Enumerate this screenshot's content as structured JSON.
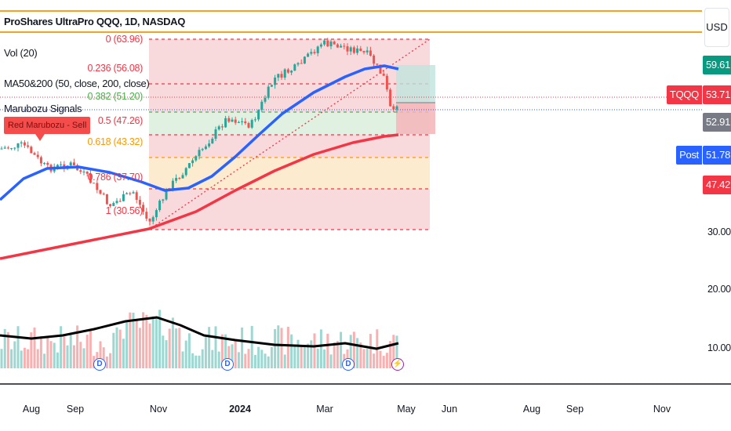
{
  "header": {
    "title": "ProShares UltraPro QQQ, 1D, NASDAQ",
    "currency": "USD"
  },
  "legend": {
    "volume": "Vol (20)",
    "ma": "MA50&200 (50, close, 200, close)",
    "signals": "Marubozu Signals"
  },
  "signal_label": "Red Marubozu - Sell",
  "fib": [
    {
      "label": "0 (63.96)",
      "color": "#f23645"
    },
    {
      "label": "0.236 (56.08)",
      "color": "#f23645"
    },
    {
      "label": "0.382 (51.20)",
      "color": "#4caf50"
    },
    {
      "label": "0.5 (47.26)",
      "color": "#f23645"
    },
    {
      "label": "0.618 (43.32)",
      "color": "#ff9800"
    },
    {
      "label": "0.786 (37.70)",
      "color": "#f23645"
    },
    {
      "label": "1 (30.56)",
      "color": "#f23645"
    }
  ],
  "price_axis": [
    "30.00",
    "20.00",
    "10.00"
  ],
  "price_tags": {
    "high": "59.61",
    "symbol": "TQQQ",
    "last": "53.71",
    "prev": "52.91",
    "post_label": "Post",
    "post": "51.78",
    "low": "47.42"
  },
  "time_axis": [
    "Aug",
    "Sep",
    "Nov",
    "2024",
    "Mar",
    "May",
    "Jun",
    "Aug",
    "Sep",
    "Nov"
  ],
  "events": {
    "dividend": "D",
    "earnings": "⚡"
  },
  "colors": {
    "up": "#26a69a",
    "down": "#ef5350",
    "ma50": "#2962ff",
    "ma200": "#f23645",
    "orange": "#f7a21b"
  }
}
